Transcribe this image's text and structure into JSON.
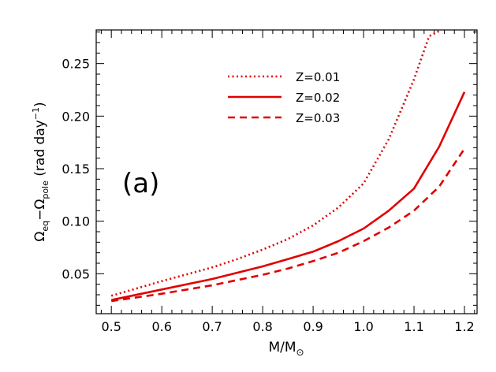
{
  "chart_data": {
    "type": "line",
    "xlabel": {
      "main": "M/M",
      "sub": "⊙"
    },
    "ylabel": {
      "omega1": "Ω",
      "sub1": "eq",
      "minus": "−",
      "omega2": "Ω",
      "sub2": "pole",
      "unit_open": " (rad day",
      "sup": "−1",
      "unit_close": ")"
    },
    "xlim": [
      0.47,
      1.225
    ],
    "ylim": [
      0.012,
      0.282
    ],
    "xticks": [
      "0.5",
      "0.6",
      "0.7",
      "0.8",
      "0.9",
      "1.0",
      "1.1",
      "1.2"
    ],
    "xtick_values": [
      0.5,
      0.6,
      0.7,
      0.8,
      0.9,
      1.0,
      1.1,
      1.2
    ],
    "yticks": [
      "0.05",
      "0.10",
      "0.15",
      "0.20",
      "0.25"
    ],
    "ytick_values": [
      0.05,
      0.1,
      0.15,
      0.2,
      0.25
    ],
    "panel_label": "(a)",
    "grid": false,
    "legend_position": "top-right",
    "series": [
      {
        "name": "Z=0.01",
        "style": "dotted",
        "color": "#e00000",
        "x": [
          0.5,
          0.6,
          0.7,
          0.75,
          0.8,
          0.85,
          0.9,
          0.95,
          1.0,
          1.05,
          1.1,
          1.13,
          1.15
        ],
        "y": [
          0.029,
          0.043,
          0.056,
          0.064,
          0.073,
          0.083,
          0.096,
          0.113,
          0.136,
          0.178,
          0.235,
          0.276,
          0.281
        ]
      },
      {
        "name": "Z=0.02",
        "style": "solid",
        "color": "#e00000",
        "x": [
          0.5,
          0.6,
          0.7,
          0.75,
          0.8,
          0.85,
          0.9,
          0.95,
          1.0,
          1.05,
          1.1,
          1.15,
          1.2
        ],
        "y": [
          0.025,
          0.035,
          0.045,
          0.051,
          0.057,
          0.064,
          0.071,
          0.081,
          0.093,
          0.11,
          0.131,
          0.171,
          0.223
        ]
      },
      {
        "name": "Z=0.03",
        "style": "dashed",
        "color": "#e00000",
        "x": [
          0.5,
          0.6,
          0.7,
          0.75,
          0.8,
          0.85,
          0.9,
          0.95,
          1.0,
          1.05,
          1.1,
          1.15,
          1.2
        ],
        "y": [
          0.024,
          0.031,
          0.039,
          0.044,
          0.049,
          0.055,
          0.062,
          0.07,
          0.081,
          0.094,
          0.11,
          0.133,
          0.169
        ]
      }
    ]
  }
}
